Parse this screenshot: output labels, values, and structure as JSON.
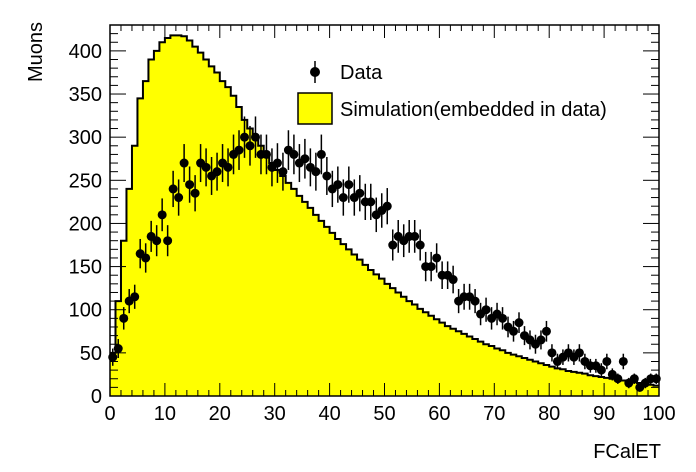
{
  "chart_data": {
    "type": "bar",
    "xlabel": "FCalET",
    "ylabel": "Muons",
    "xlim": [
      0,
      100
    ],
    "ylim": [
      0,
      430
    ],
    "x_ticks": [
      "0",
      "10",
      "20",
      "30",
      "40",
      "50",
      "60",
      "70",
      "80",
      "90",
      "100"
    ],
    "y_ticks": [
      "0",
      "50",
      "100",
      "150",
      "200",
      "250",
      "300",
      "350",
      "400"
    ],
    "legend": {
      "position": "top-right",
      "entries": [
        {
          "label": "Data",
          "style": "marker"
        },
        {
          "label": "Simulation(embedded in data)",
          "style": "filled-box"
        }
      ]
    },
    "series": [
      {
        "name": "Simulation(embedded in data)",
        "kind": "histogram",
        "fill_color": "#ffff00",
        "line_color": "#000000",
        "bin_width": 1,
        "bin_start": 0,
        "values": [
          50,
          110,
          180,
          240,
          290,
          345,
          365,
          390,
          400,
          410,
          415,
          418,
          418,
          417,
          412,
          405,
          398,
          390,
          382,
          375,
          365,
          358,
          348,
          335,
          320,
          310,
          300,
          290,
          280,
          270,
          262,
          255,
          247,
          240,
          232,
          225,
          218,
          210,
          203,
          196,
          189,
          182,
          176,
          170,
          164,
          158,
          152,
          146,
          141,
          136,
          130,
          125,
          120,
          115,
          110,
          106,
          101,
          97,
          93,
          89,
          85,
          81,
          78,
          75,
          72,
          69,
          66,
          63,
          60,
          58,
          55,
          53,
          50,
          48,
          46,
          44,
          42,
          40,
          38,
          36,
          34,
          32,
          31,
          29,
          28,
          27,
          26,
          24,
          23,
          22,
          21,
          20,
          19,
          18,
          17,
          16,
          15,
          14,
          13,
          12
        ]
      },
      {
        "name": "Data",
        "kind": "points",
        "marker_color": "#000000",
        "x": [
          0.5,
          1.5,
          2.5,
          3.5,
          4.5,
          5.5,
          6.5,
          7.5,
          8.5,
          9.5,
          10.5,
          11.5,
          12.5,
          13.5,
          14.5,
          15.5,
          16.5,
          17.5,
          18.5,
          19.5,
          20.5,
          21.5,
          22.5,
          23.5,
          24.5,
          25.5,
          26.5,
          27.5,
          28.5,
          29.5,
          30.5,
          31.5,
          32.5,
          33.5,
          34.5,
          35.5,
          36.5,
          37.5,
          38.5,
          39.5,
          40.5,
          41.5,
          42.5,
          43.5,
          44.5,
          45.5,
          46.5,
          47.5,
          48.5,
          49.5,
          50.5,
          51.5,
          52.5,
          53.5,
          54.5,
          55.5,
          56.5,
          57.5,
          58.5,
          59.5,
          60.5,
          61.5,
          62.5,
          63.5,
          64.5,
          65.5,
          66.5,
          67.5,
          68.5,
          69.5,
          70.5,
          71.5,
          72.5,
          73.5,
          74.5,
          75.5,
          76.5,
          77.5,
          78.5,
          79.5,
          80.5,
          81.5,
          82.5,
          83.5,
          84.5,
          85.5,
          86.5,
          87.5,
          88.5,
          89.5,
          90.5,
          91.5,
          92.5,
          93.5,
          94.5,
          95.5,
          96.5,
          97.5,
          98.5,
          99.5
        ],
        "y": [
          45,
          55,
          90,
          110,
          115,
          165,
          160,
          185,
          180,
          210,
          180,
          240,
          230,
          270,
          245,
          235,
          270,
          265,
          255,
          260,
          270,
          265,
          280,
          285,
          300,
          290,
          300,
          280,
          280,
          265,
          270,
          260,
          285,
          280,
          270,
          275,
          265,
          260,
          280,
          255,
          240,
          245,
          230,
          245,
          230,
          235,
          225,
          225,
          210,
          215,
          220,
          175,
          185,
          180,
          185,
          185,
          175,
          150,
          150,
          160,
          140,
          140,
          135,
          110,
          115,
          115,
          110,
          95,
          100,
          90,
          95,
          90,
          80,
          75,
          85,
          70,
          65,
          60,
          65,
          75,
          50,
          40,
          45,
          50,
          45,
          50,
          40,
          35,
          35,
          30,
          40,
          25,
          20,
          40,
          15,
          20,
          10,
          15,
          20,
          20
        ],
        "err": [
          10,
          11,
          13,
          14,
          14,
          17,
          17,
          18,
          18,
          19,
          18,
          21,
          21,
          22,
          21,
          21,
          22,
          22,
          22,
          22,
          22,
          22,
          23,
          23,
          24,
          23,
          24,
          23,
          23,
          22,
          23,
          22,
          23,
          23,
          22,
          23,
          22,
          22,
          23,
          22,
          21,
          21,
          21,
          21,
          21,
          21,
          21,
          21,
          20,
          20,
          21,
          18,
          19,
          19,
          19,
          19,
          18,
          17,
          17,
          17,
          16,
          16,
          16,
          14,
          15,
          15,
          14,
          13,
          14,
          13,
          13,
          13,
          12,
          12,
          12,
          11,
          11,
          11,
          11,
          12,
          10,
          9,
          9,
          10,
          9,
          10,
          9,
          8,
          8,
          8,
          9,
          7,
          6,
          9,
          6,
          6,
          5,
          6,
          6,
          6
        ]
      }
    ]
  }
}
